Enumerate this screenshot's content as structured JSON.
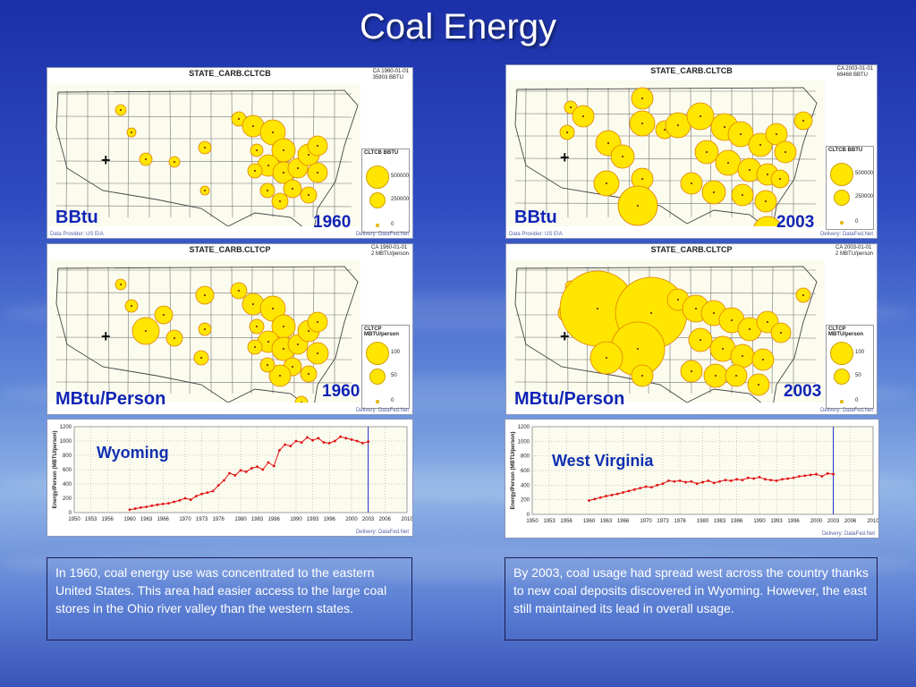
{
  "slide": {
    "title": "Coal Energy"
  },
  "maps": [
    {
      "id": "tl",
      "title": "STATE_CARB.CLTCB",
      "meta_line1": "CA 1960-01-01",
      "meta_line2": "35903 BBTU",
      "unit": "BBtu",
      "year": "1960",
      "legend_title": "CLTCB BBTU",
      "legend_values": [
        "500000",
        "250000",
        "0"
      ],
      "provider": "Data Provider: US EIA",
      "delivery": "Delivery: DataFed.Net",
      "marker_color": "#ffe600"
    },
    {
      "id": "tr",
      "title": "STATE_CARB.CLTCB",
      "meta_line1": "CA 2003-01-01",
      "meta_line2": "69469 BBTU",
      "unit": "BBtu",
      "year": "2003",
      "legend_title": "CLTCB BBTU",
      "legend_values": [
        "500000",
        "250000",
        "0"
      ],
      "provider": "Data Provider: US EIA",
      "delivery": "Delivery: DataFed.Net",
      "marker_color": "#ffe600"
    },
    {
      "id": "ml",
      "title": "STATE_CARB.CLTCP",
      "meta_line1": "CA 1960-01-01",
      "meta_line2": "2 MBTU/person",
      "unit": "MBtu/Person",
      "year": "1960",
      "legend_title": "CLTCP MBTU/person",
      "legend_values": [
        "100",
        "50",
        "0"
      ],
      "provider": "",
      "delivery": "Delivery: DataFed.Net",
      "marker_color": "#ffe600"
    },
    {
      "id": "mr",
      "title": "STATE_CARB.CLTCP",
      "meta_line1": "CA 2003-01-01",
      "meta_line2": "2 MBTU/person",
      "unit": "MBtu/Person",
      "year": "2003",
      "legend_title": "CLTCP MBTU/person",
      "legend_values": [
        "100",
        "50",
        "0"
      ],
      "provider": "",
      "delivery": "Delivery: DataFed.Net",
      "marker_color": "#ffe600"
    }
  ],
  "chart_data": [
    {
      "type": "line",
      "series_label": "Wyoming",
      "ylabel": "Energy/Person (MBTU/person)",
      "xlim": [
        1950,
        2010
      ],
      "ylim": [
        0,
        1200
      ],
      "x_ticks": [
        "1950",
        "1953",
        "1956",
        "1960",
        "1963",
        "1966",
        "1970",
        "1973",
        "1976",
        "1980",
        "1983",
        "1986",
        "1990",
        "1993",
        "1996",
        "2000",
        "2003",
        "2006",
        "2010"
      ],
      "y_ticks": [
        "0",
        "200",
        "400",
        "600",
        "800",
        "1000",
        "1200"
      ],
      "marker_line_x": 2003,
      "x": [
        1960,
        1961,
        1962,
        1963,
        1964,
        1965,
        1966,
        1967,
        1968,
        1969,
        1970,
        1971,
        1972,
        1973,
        1974,
        1975,
        1976,
        1977,
        1978,
        1979,
        1980,
        1981,
        1982,
        1983,
        1984,
        1985,
        1986,
        1987,
        1988,
        1989,
        1990,
        1991,
        1992,
        1993,
        1994,
        1995,
        1996,
        1997,
        1998,
        1999,
        2000,
        2001,
        2002,
        2003
      ],
      "values": [
        40,
        55,
        70,
        80,
        95,
        110,
        120,
        130,
        150,
        170,
        200,
        180,
        230,
        260,
        280,
        300,
        380,
        450,
        550,
        520,
        590,
        570,
        620,
        640,
        600,
        700,
        650,
        870,
        950,
        930,
        1000,
        980,
        1050,
        1010,
        1040,
        980,
        970,
        1000,
        1060,
        1040,
        1020,
        1000,
        970,
        990
      ],
      "footer": "Delivery: DataFed.Net"
    },
    {
      "type": "line",
      "series_label": "West Virginia",
      "ylabel": "Energy/Person (MBTU/person)",
      "xlim": [
        1950,
        2010
      ],
      "ylim": [
        0,
        1200
      ],
      "x_ticks": [
        "1950",
        "1953",
        "1956",
        "1960",
        "1963",
        "1966",
        "1970",
        "1973",
        "1976",
        "1980",
        "1983",
        "1986",
        "1990",
        "1993",
        "1996",
        "2000",
        "2003",
        "2006",
        "2010"
      ],
      "y_ticks": [
        "0",
        "200",
        "400",
        "600",
        "800",
        "1000",
        "1200"
      ],
      "marker_line_x": 2003,
      "x": [
        1960,
        1961,
        1962,
        1963,
        1964,
        1965,
        1966,
        1967,
        1968,
        1969,
        1970,
        1971,
        1972,
        1973,
        1974,
        1975,
        1976,
        1977,
        1978,
        1979,
        1980,
        1981,
        1982,
        1983,
        1984,
        1985,
        1986,
        1987,
        1988,
        1989,
        1990,
        1991,
        1992,
        1993,
        1994,
        1995,
        1996,
        1997,
        1998,
        1999,
        2000,
        2001,
        2002,
        2003
      ],
      "values": [
        190,
        210,
        230,
        250,
        265,
        280,
        300,
        320,
        340,
        360,
        380,
        370,
        400,
        420,
        460,
        450,
        460,
        440,
        450,
        420,
        440,
        460,
        430,
        450,
        470,
        460,
        480,
        470,
        500,
        490,
        510,
        480,
        470,
        460,
        480,
        490,
        500,
        520,
        530,
        540,
        550,
        520,
        560,
        550
      ],
      "footer": "Delivery: DataFed.Net"
    }
  ],
  "captions": {
    "left": "In 1960, coal energy use was concentrated to the eastern United States. This area had easier access to the large coal stores in the Ohio river valley than the western states.",
    "right": "By 2003, coal usage had spread west across the country thanks to new coal deposits discovered in Wyoming. However, the east still maintained its lead in overall usage."
  }
}
